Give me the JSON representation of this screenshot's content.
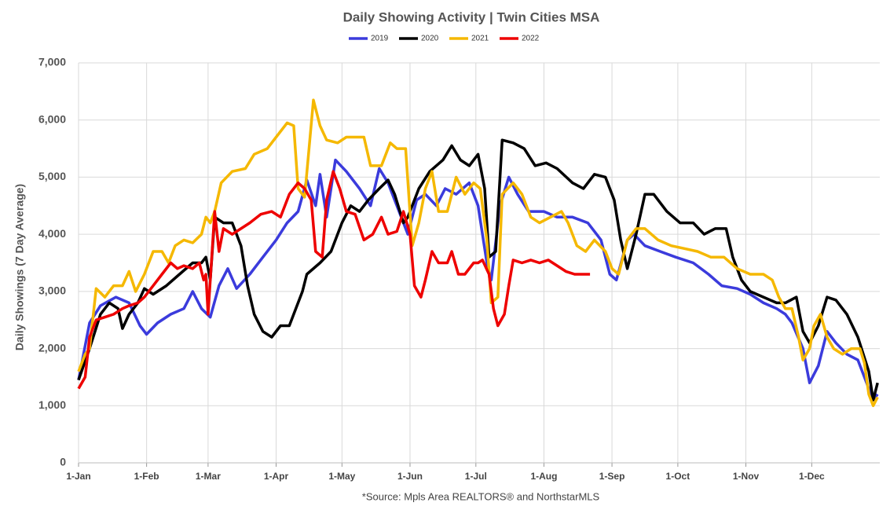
{
  "chart_data": {
    "type": "line",
    "title": "Daily Showing Activity | Twin Cities MSA",
    "y_label": "Daily Showings (7 Day Average)",
    "source": "*Source:  Mpls Area REALTORS® and NorthstarMLS",
    "xlim": [
      0,
      365
    ],
    "xticks": [
      {
        "value": 0,
        "label": "1-Jan"
      },
      {
        "value": 31,
        "label": "1-Feb"
      },
      {
        "value": 59,
        "label": "1-Mar"
      },
      {
        "value": 90,
        "label": "1-Apr"
      },
      {
        "value": 120,
        "label": "1-May"
      },
      {
        "value": 151,
        "label": "1-Jun"
      },
      {
        "value": 181,
        "label": "1-Jul"
      },
      {
        "value": 212,
        "label": "1-Aug"
      },
      {
        "value": 243,
        "label": "1-Sep"
      },
      {
        "value": 273,
        "label": "1-Oct"
      },
      {
        "value": 304,
        "label": "1-Nov"
      },
      {
        "value": 334,
        "label": "1-Dec"
      }
    ],
    "ylim": [
      0,
      7000
    ],
    "yticks": [
      0,
      {
        "value": 1000,
        "label": "1,000"
      },
      {
        "value": 2000,
        "label": "2,000"
      },
      {
        "value": 3000,
        "label": "3,000"
      },
      {
        "value": 4000,
        "label": "4,000"
      },
      {
        "value": 5000,
        "label": "5,000"
      },
      {
        "value": 6000,
        "label": "6,000"
      },
      {
        "value": 7000,
        "label": "7,000"
      }
    ],
    "grid": true,
    "series": [
      {
        "name": "2019",
        "color": "#3b3bdc",
        "x": [
          0,
          5,
          10,
          17,
          23,
          28,
          31,
          36,
          42,
          48,
          52,
          56,
          60,
          64,
          68,
          72,
          78,
          84,
          90,
          95,
          100,
          104,
          108,
          110,
          113,
          117,
          122,
          128,
          133,
          137,
          141,
          145,
          150,
          154,
          158,
          163,
          167,
          172,
          178,
          182,
          186,
          188,
          192,
          196,
          200,
          205,
          212,
          218,
          225,
          232,
          238,
          242,
          245,
          250,
          253,
          258,
          265,
          272,
          280,
          287,
          293,
          300,
          306,
          312,
          318,
          322,
          325,
          330,
          333,
          337,
          341,
          345,
          350,
          355,
          360,
          362,
          364
        ],
        "values": [
          1450,
          2450,
          2750,
          2900,
          2800,
          2400,
          2250,
          2450,
          2600,
          2700,
          3000,
          2700,
          2550,
          3100,
          3400,
          3050,
          3300,
          3600,
          3900,
          4200,
          4400,
          4950,
          4500,
          5050,
          4300,
          5300,
          5100,
          4800,
          4500,
          5150,
          4900,
          4500,
          4000,
          4600,
          4700,
          4500,
          4800,
          4700,
          4900,
          4500,
          3500,
          3200,
          4500,
          5000,
          4700,
          4400,
          4400,
          4300,
          4300,
          4200,
          3900,
          3300,
          3200,
          3900,
          4000,
          3800,
          3700,
          3600,
          3500,
          3300,
          3100,
          3050,
          2950,
          2800,
          2700,
          2600,
          2450,
          2000,
          1400,
          1700,
          2300,
          2100,
          1900,
          1800,
          1300,
          1100,
          1200
        ]
      },
      {
        "name": "2020",
        "color": "#000000",
        "x": [
          0,
          5,
          10,
          14,
          18,
          20,
          23,
          27,
          30,
          34,
          40,
          46,
          52,
          56,
          58,
          60,
          62,
          66,
          70,
          74,
          77,
          80,
          84,
          88,
          92,
          96,
          98,
          102,
          104,
          110,
          115,
          120,
          124,
          128,
          132,
          137,
          141,
          144,
          148,
          150,
          155,
          160,
          166,
          170,
          174,
          178,
          182,
          185,
          187,
          190,
          193,
          198,
          203,
          208,
          213,
          218,
          225,
          230,
          235,
          240,
          244,
          247,
          250,
          254,
          258,
          262,
          268,
          274,
          280,
          285,
          290,
          295,
          298,
          302,
          306,
          312,
          318,
          322,
          327,
          330,
          333,
          337,
          341,
          345,
          350,
          355,
          360,
          362,
          364
        ],
        "values": [
          1450,
          2000,
          2600,
          2800,
          2700,
          2350,
          2600,
          2800,
          3050,
          2950,
          3100,
          3300,
          3500,
          3500,
          3600,
          3200,
          4300,
          4200,
          4200,
          3800,
          3100,
          2600,
          2300,
          2200,
          2400,
          2400,
          2600,
          3000,
          3300,
          3500,
          3700,
          4200,
          4500,
          4400,
          4600,
          4800,
          4950,
          4700,
          4200,
          4300,
          4800,
          5100,
          5300,
          5550,
          5300,
          5200,
          5400,
          4800,
          3600,
          3700,
          5650,
          5600,
          5500,
          5200,
          5250,
          5150,
          4900,
          4800,
          5050,
          5000,
          4600,
          3900,
          3400,
          4000,
          4700,
          4700,
          4400,
          4200,
          4200,
          4000,
          4100,
          4100,
          3600,
          3200,
          3000,
          2900,
          2800,
          2800,
          2900,
          2300,
          2100,
          2400,
          2900,
          2850,
          2600,
          2200,
          1600,
          1100,
          1400
        ]
      },
      {
        "name": "2021",
        "color": "#f5b800",
        "x": [
          0,
          3,
          5,
          8,
          12,
          16,
          20,
          23,
          26,
          30,
          34,
          38,
          41,
          44,
          48,
          52,
          56,
          58,
          60,
          62,
          65,
          70,
          76,
          80,
          86,
          90,
          95,
          98,
          100,
          103,
          107,
          110,
          113,
          118,
          122,
          126,
          130,
          133,
          138,
          142,
          145,
          149,
          152,
          155,
          158,
          161,
          164,
          168,
          172,
          176,
          180,
          183,
          186,
          188,
          191,
          193,
          198,
          202,
          206,
          210,
          215,
          220,
          223,
          227,
          231,
          235,
          240,
          243,
          246,
          250,
          254,
          258,
          264,
          270,
          276,
          282,
          288,
          294,
          300,
          306,
          312,
          316,
          319,
          322,
          325,
          328,
          330,
          333,
          335,
          338,
          341,
          344,
          348,
          352,
          356,
          358,
          360,
          362,
          364
        ],
        "values": [
          1600,
          1900,
          2000,
          3050,
          2900,
          3100,
          3100,
          3350,
          3000,
          3300,
          3700,
          3700,
          3500,
          3800,
          3900,
          3850,
          4000,
          4300,
          4200,
          4400,
          4900,
          5100,
          5150,
          5400,
          5500,
          5700,
          5950,
          5900,
          4800,
          4650,
          6350,
          5900,
          5650,
          5600,
          5700,
          5700,
          5700,
          5200,
          5200,
          5600,
          5500,
          5500,
          3800,
          4200,
          4800,
          5100,
          4400,
          4400,
          5000,
          4700,
          4900,
          4800,
          3900,
          2800,
          2900,
          4700,
          4900,
          4700,
          4300,
          4200,
          4300,
          4400,
          4200,
          3800,
          3700,
          3900,
          3700,
          3400,
          3300,
          3900,
          4100,
          4100,
          3900,
          3800,
          3750,
          3700,
          3600,
          3600,
          3400,
          3300,
          3300,
          3200,
          2900,
          2700,
          2700,
          2200,
          1800,
          2000,
          2400,
          2600,
          2200,
          2000,
          1900,
          2000,
          2000,
          1750,
          1200,
          1000,
          1150
        ]
      },
      {
        "name": "2022",
        "color": "#ee0000",
        "x": [
          0,
          3,
          5,
          8,
          12,
          16,
          20,
          23,
          27,
          30,
          34,
          38,
          42,
          45,
          48,
          52,
          55,
          57,
          58,
          59,
          60,
          62,
          64,
          66,
          70,
          74,
          78,
          83,
          88,
          92,
          96,
          100,
          103,
          106,
          108,
          111,
          113,
          116,
          119,
          122,
          126,
          130,
          134,
          138,
          141,
          145,
          148,
          151,
          153,
          156,
          158,
          161,
          164,
          168,
          170,
          173,
          176,
          180,
          182,
          184,
          187,
          189,
          191,
          194,
          196,
          198,
          202,
          206,
          210,
          214,
          218,
          222,
          226,
          230,
          233
        ],
        "values": [
          1300,
          1500,
          2200,
          2500,
          2550,
          2600,
          2700,
          2750,
          2800,
          2900,
          3100,
          3300,
          3500,
          3400,
          3450,
          3400,
          3500,
          3200,
          3300,
          2600,
          3200,
          4400,
          3700,
          4100,
          4000,
          4100,
          4200,
          4350,
          4400,
          4300,
          4700,
          4900,
          4800,
          4600,
          3700,
          3600,
          4600,
          5100,
          4800,
          4400,
          4350,
          3900,
          4000,
          4300,
          4000,
          4050,
          4400,
          4000,
          3100,
          2900,
          3200,
          3700,
          3500,
          3500,
          3700,
          3300,
          3300,
          3500,
          3500,
          3550,
          3300,
          2700,
          2400,
          2600,
          3100,
          3550,
          3500,
          3550,
          3500,
          3550,
          3450,
          3350,
          3300,
          3300,
          3300
        ]
      }
    ]
  }
}
